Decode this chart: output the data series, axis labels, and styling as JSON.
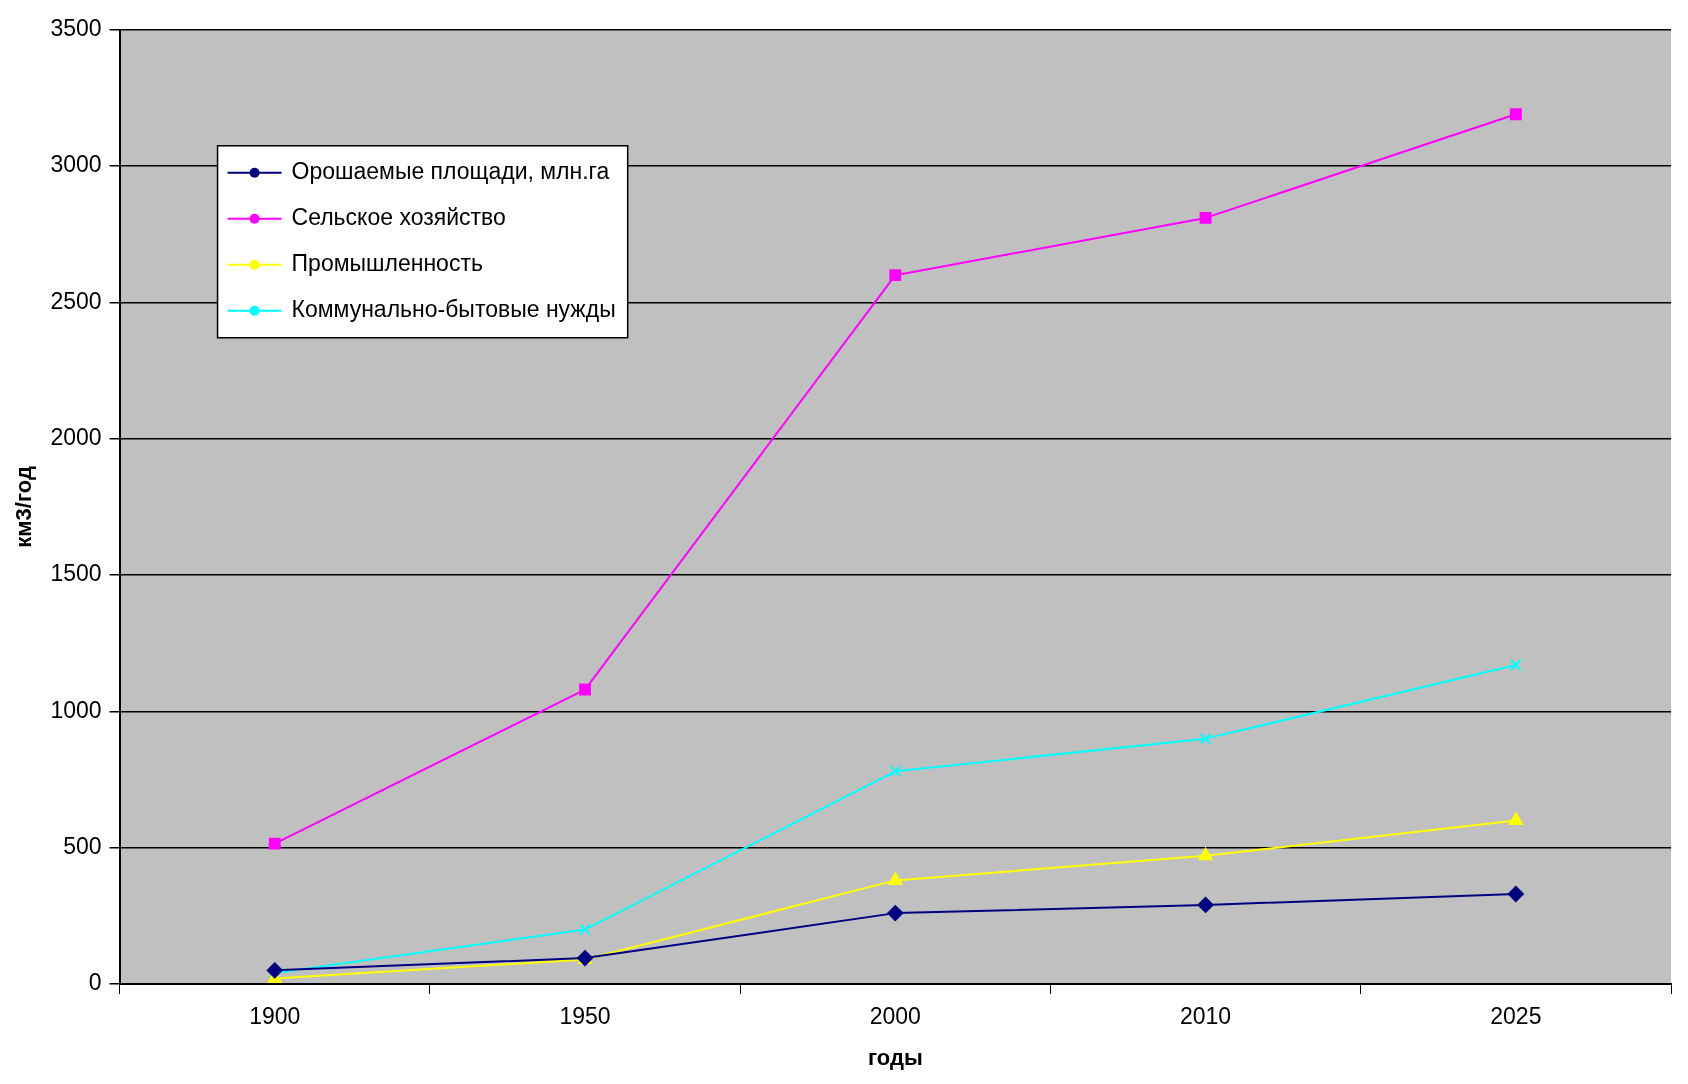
{
  "chart_data": {
    "type": "line",
    "xlabel": "годы",
    "ylabel": "км3/год",
    "categories": [
      "1900",
      "1950",
      "2000",
      "2010",
      "2025"
    ],
    "series": [
      {
        "name": "Орошаемые площади, млн.га",
        "color": "#000080",
        "marker": "diamond",
        "values": [
          50,
          95,
          260,
          290,
          330
        ]
      },
      {
        "name": "Сельское хозяйство",
        "color": "#ff00ff",
        "marker": "square",
        "values": [
          515,
          1080,
          2600,
          2810,
          3190
        ]
      },
      {
        "name": "Промышленность",
        "color": "#ffff00",
        "marker": "triangle",
        "values": [
          20,
          90,
          380,
          470,
          600
        ]
      },
      {
        "name": "Коммунально-бытовые нужды",
        "color": "#00ffff",
        "marker": "cross",
        "values": [
          40,
          200,
          780,
          900,
          1170
        ]
      }
    ],
    "ylim": [
      0,
      3500
    ],
    "yticks": [
      0,
      500,
      1000,
      1500,
      2000,
      2500,
      3000,
      3500
    ],
    "grid": "y",
    "legend": "top left"
  }
}
